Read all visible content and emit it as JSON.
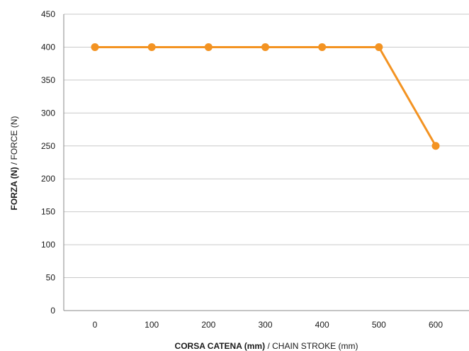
{
  "chart_data": {
    "type": "line",
    "title": "",
    "x": [
      0,
      100,
      200,
      300,
      400,
      500,
      600
    ],
    "x_tick_labels": [
      "0",
      "100",
      "200",
      "300",
      "400",
      "500",
      "600"
    ],
    "series": [
      {
        "values": [
          400,
          400,
          400,
          400,
          400,
          400,
          250
        ],
        "color": "#f39322"
      }
    ],
    "y_ticks": [
      0,
      50,
      100,
      150,
      200,
      250,
      300,
      350,
      400,
      450
    ],
    "y_tick_labels": [
      "0",
      "50",
      "100",
      "150",
      "200",
      "250",
      "300",
      "350",
      "400",
      "450"
    ],
    "ylim": [
      0,
      450
    ],
    "xlabel_main": "CORSA CATENA (mm)",
    "xlabel_rest": " / CHAIN STROKE (mm)",
    "ylabel_main": "FORZA (N)",
    "ylabel_rest": " / FORCE (N)",
    "grid": true,
    "gridline_color": "#c9c9c9",
    "axis_color": "#8a8a8a"
  }
}
